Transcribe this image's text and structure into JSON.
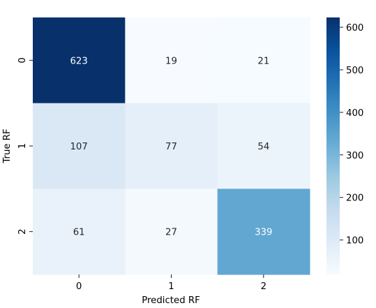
{
  "chart_data": {
    "type": "heatmap",
    "title": "",
    "xlabel": "Predicted RF",
    "ylabel": "True RF",
    "x_categories": [
      "0",
      "1",
      "2"
    ],
    "y_categories": [
      "0",
      "1",
      "2"
    ],
    "values": [
      [
        623,
        19,
        21
      ],
      [
        107,
        77,
        54
      ],
      [
        61,
        27,
        339
      ]
    ],
    "colormap": "Blues",
    "colorbar": {
      "range": [
        19,
        623
      ],
      "ticks": [
        100,
        200,
        300,
        400,
        500,
        600
      ]
    },
    "grid": false,
    "legend": "colorbar-right"
  }
}
